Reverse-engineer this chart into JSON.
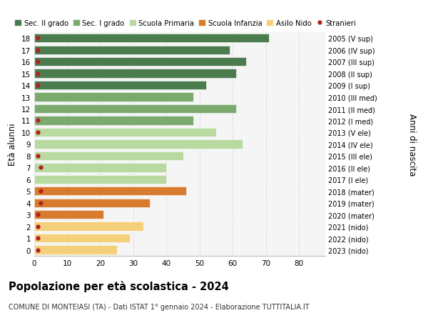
{
  "ages": [
    18,
    17,
    16,
    15,
    14,
    13,
    12,
    11,
    10,
    9,
    8,
    7,
    6,
    5,
    4,
    3,
    2,
    1,
    0
  ],
  "values": [
    71,
    59,
    64,
    61,
    52,
    48,
    61,
    48,
    55,
    63,
    45,
    40,
    40,
    46,
    35,
    21,
    33,
    29,
    25
  ],
  "stranieri": [
    1,
    1,
    1,
    1,
    1,
    0,
    0,
    1,
    1,
    0,
    1,
    2,
    0,
    2,
    2,
    1,
    1,
    1,
    1
  ],
  "right_labels": [
    "2005 (V sup)",
    "2006 (IV sup)",
    "2007 (III sup)",
    "2008 (II sup)",
    "2009 (I sup)",
    "2010 (III med)",
    "2011 (II med)",
    "2012 (I med)",
    "2013 (V ele)",
    "2014 (IV ele)",
    "2015 (III ele)",
    "2016 (II ele)",
    "2017 (I ele)",
    "2018 (mater)",
    "2019 (mater)",
    "2020 (mater)",
    "2021 (nido)",
    "2022 (nido)",
    "2023 (nido)"
  ],
  "bar_colors": [
    "#4a7c4e",
    "#4a7c4e",
    "#4a7c4e",
    "#4a7c4e",
    "#4a7c4e",
    "#7aaa6e",
    "#7aaa6e",
    "#7aaa6e",
    "#b8d9a0",
    "#b8d9a0",
    "#b8d9a0",
    "#b8d9a0",
    "#b8d9a0",
    "#d97b2e",
    "#d97b2e",
    "#d97b2e",
    "#f5d07a",
    "#f5d07a",
    "#f5d07a"
  ],
  "legend_labels": [
    "Sec. II grado",
    "Sec. I grado",
    "Scuola Primaria",
    "Scuola Infanzia",
    "Asilo Nido",
    "Stranieri"
  ],
  "legend_colors": [
    "#4a7c4e",
    "#7aaa6e",
    "#b8d9a0",
    "#d97b2e",
    "#f5d07a",
    "#b22222"
  ],
  "title": "Popolazione per età scolastica - 2024",
  "subtitle": "COMUNE DI MONTEIASI (TA) - Dati ISTAT 1° gennaio 2024 - Elaborazione TUTTITALIA.IT",
  "ylabel_left": "Età alunni",
  "ylabel_right": "Anni di nascita",
  "xticks": [
    0,
    10,
    20,
    30,
    40,
    50,
    60,
    70,
    80
  ],
  "bg_color": "#ffffff",
  "grid_color": "#dddddd",
  "stranieri_color": "#b22222"
}
